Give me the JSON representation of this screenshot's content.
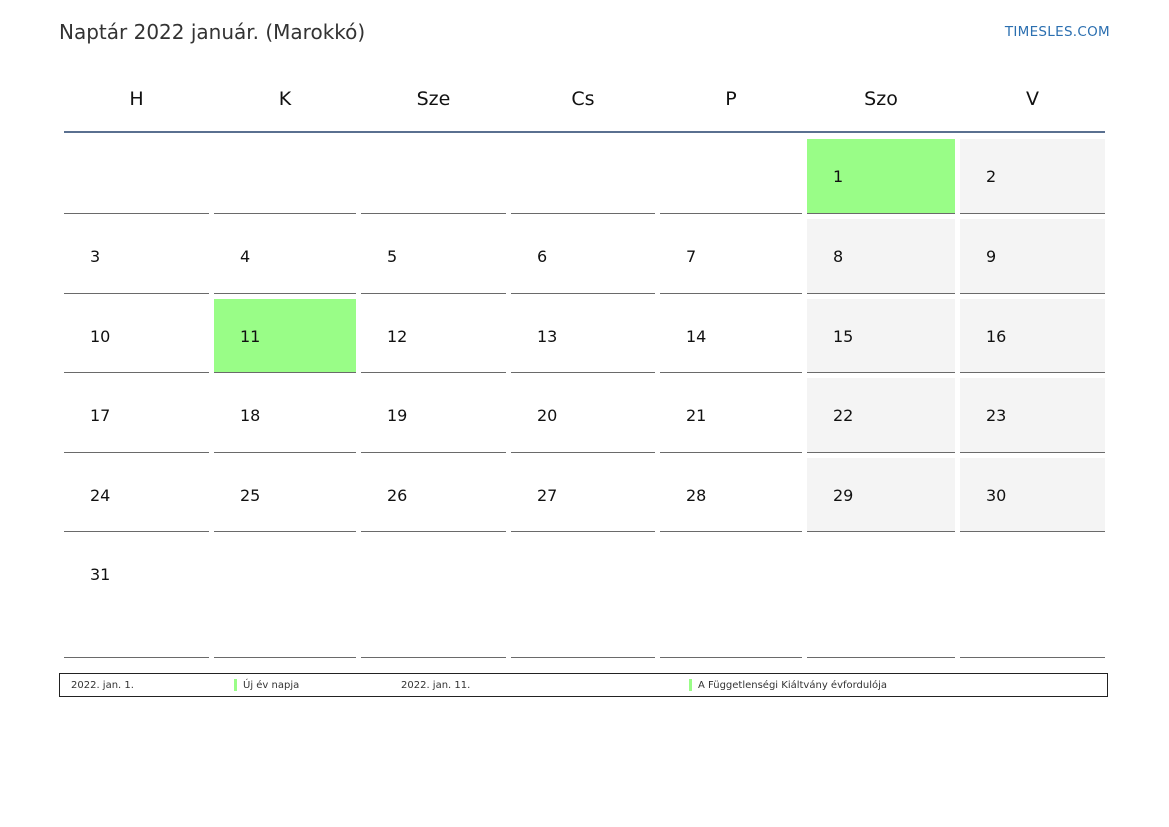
{
  "header": {
    "title": "Naptár 2022 január. (Marokkó)",
    "brand": "TIMESLES.COM"
  },
  "weekdays": [
    "H",
    "K",
    "Sze",
    "Cs",
    "P",
    "Szo",
    "V"
  ],
  "colors": {
    "holiday": "#99fd87",
    "weekend": "#f4f4f4",
    "header_line": "#5a7090",
    "brand": "#2b6fb0"
  },
  "weeks": [
    [
      "",
      "",
      "",
      "",
      "",
      "1",
      "2"
    ],
    [
      "3",
      "4",
      "5",
      "6",
      "7",
      "8",
      "9"
    ],
    [
      "10",
      "11",
      "12",
      "13",
      "14",
      "15",
      "16"
    ],
    [
      "17",
      "18",
      "19",
      "20",
      "21",
      "22",
      "23"
    ],
    [
      "24",
      "25",
      "26",
      "27",
      "28",
      "29",
      "30"
    ],
    [
      "31",
      "",
      "",
      "",
      "",
      "",
      ""
    ]
  ],
  "holiday_days": [
    "1",
    "11"
  ],
  "legend": [
    {
      "date": "2022. jan. 1.",
      "name": "Új év napja"
    },
    {
      "date": "2022. jan. 11.",
      "name": "A Függetlenségi Kiáltvány évfordulója"
    }
  ]
}
